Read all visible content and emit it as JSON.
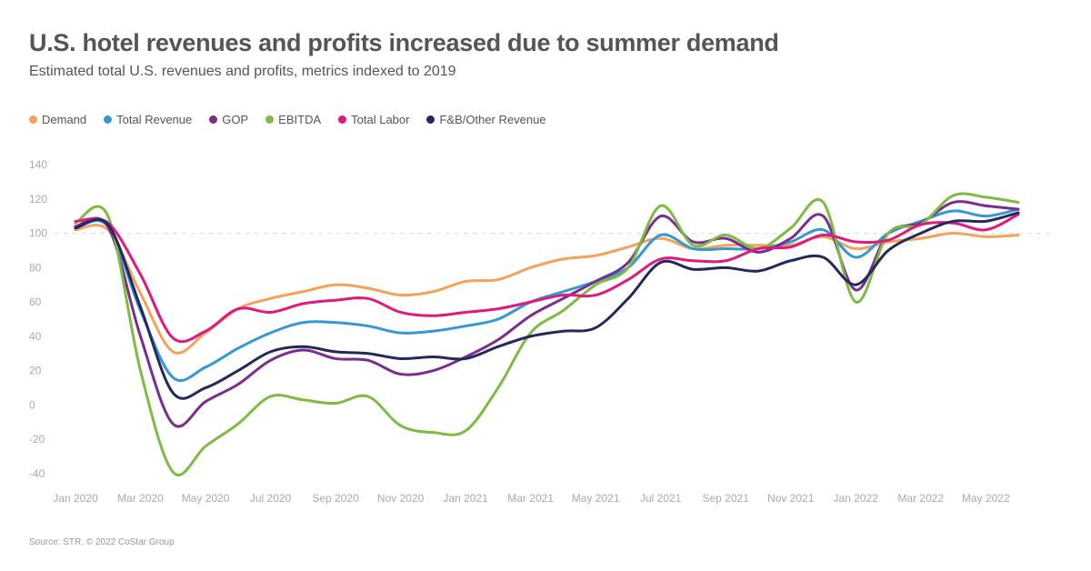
{
  "chart_data": {
    "type": "line",
    "title": "U.S. hotel revenues and profits increased due to summer demand",
    "subtitle": "Estimated total U.S. revenues and profits, metrics indexed to 2019",
    "source": "Source: STR. © 2022 CoStar Group",
    "xlabel": "",
    "ylabel": "",
    "ylim": [
      -40,
      140
    ],
    "yticks": [
      140,
      120,
      100,
      80,
      60,
      40,
      20,
      0,
      -20,
      -40
    ],
    "x": [
      "Jan 2020",
      "Feb 2020",
      "Mar 2020",
      "Apr 2020",
      "May 2020",
      "Jun 2020",
      "Jul 2020",
      "Aug 2020",
      "Sep 2020",
      "Oct 2020",
      "Nov 2020",
      "Dec 2020",
      "Jan 2021",
      "Feb 2021",
      "Mar 2021",
      "Apr 2021",
      "May 2021",
      "Jun 2021",
      "Jul 2021",
      "Aug 2021",
      "Sep 2021",
      "Oct 2021",
      "Nov 2021",
      "Dec 2021",
      "Jan 2022",
      "Feb 2022",
      "Mar 2022",
      "Apr 2022",
      "May 2022",
      "Jun 2022"
    ],
    "xticks": [
      "Jan 2020",
      "Mar 2020",
      "May 2020",
      "Jul 2020",
      "Sep 2020",
      "Nov 2020",
      "Jan 2021",
      "Mar 2021",
      "May 2021",
      "Jul 2021",
      "Sep 2021",
      "Nov 2021",
      "Jan 2022",
      "Mar 2022",
      "May 2022"
    ],
    "reference_line": 100,
    "grid": false,
    "legend_position": "top-left",
    "series": [
      {
        "name": "Demand",
        "color": "#f4a259",
        "values": [
          102,
          102,
          65,
          31,
          42,
          56,
          62,
          66,
          70,
          68,
          64,
          66,
          72,
          73,
          80,
          85,
          87,
          92,
          97,
          91,
          93,
          93,
          93,
          98,
          91,
          95,
          97,
          100,
          98,
          99
        ]
      },
      {
        "name": "Total Revenue",
        "color": "#3399d6",
        "values": [
          103,
          104,
          55,
          16,
          22,
          33,
          42,
          48,
          48,
          46,
          42,
          43,
          46,
          50,
          60,
          66,
          72,
          80,
          99,
          91,
          91,
          91,
          95,
          102,
          86,
          100,
          107,
          113,
          110,
          114
        ]
      },
      {
        "name": "GOP",
        "color": "#7b2d8e",
        "values": [
          104,
          104,
          40,
          -11,
          2,
          12,
          26,
          32,
          27,
          26,
          18,
          20,
          28,
          38,
          52,
          62,
          72,
          83,
          110,
          95,
          97,
          89,
          97,
          110,
          67,
          100,
          106,
          118,
          116,
          114
        ]
      },
      {
        "name": "EBITDA",
        "color": "#7dbb42",
        "values": [
          106,
          110,
          20,
          -39,
          -24,
          -11,
          5,
          3,
          1,
          5,
          -12,
          -16,
          -15,
          10,
          42,
          55,
          70,
          80,
          116,
          93,
          99,
          91,
          103,
          118,
          60,
          100,
          105,
          122,
          121,
          118
        ]
      },
      {
        "name": "Total Labor",
        "color": "#e0197d",
        "values": [
          107,
          106,
          76,
          39,
          43,
          56,
          54,
          59,
          61,
          62,
          54,
          52,
          54,
          56,
          60,
          64,
          64,
          73,
          85,
          84,
          84,
          91,
          92,
          99,
          95,
          96,
          105,
          106,
          102,
          111
        ]
      },
      {
        "name": "F&B/Other Revenue",
        "color": "#23285e",
        "values": [
          103,
          105,
          57,
          7,
          10,
          20,
          31,
          34,
          31,
          30,
          27,
          28,
          27,
          34,
          40,
          43,
          45,
          62,
          83,
          79,
          80,
          78,
          84,
          86,
          70,
          90,
          100,
          107,
          107,
          112
        ]
      }
    ]
  }
}
